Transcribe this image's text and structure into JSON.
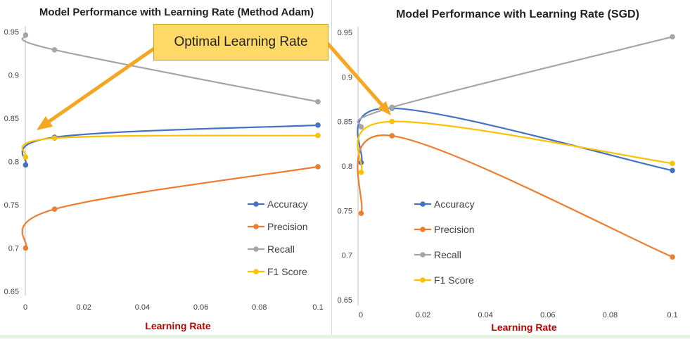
{
  "annotation": {
    "text": "Optimal Learning Rate",
    "color": "#ffd966",
    "arrow_color": "#f5a623"
  },
  "colors": {
    "Accuracy": "#4472c4",
    "Precision": "#ed7d31",
    "Recall": "#a5a5a5",
    "F1 Score": "#ffc000",
    "xlabel": "#c00000"
  },
  "chart_data": [
    {
      "type": "line",
      "title": "Model Performance with Learning Rate (Method Adam)",
      "xlabel": "Learning Rate",
      "ylabel": "",
      "x": [
        0.0001,
        0.01,
        0.1
      ],
      "xlim": [
        0,
        0.1
      ],
      "ylim": [
        0.65,
        0.95
      ],
      "xticks": [
        "0",
        "0.02",
        "0.04",
        "0.06",
        "0.08",
        "0.1"
      ],
      "yticks": [
        "0.65",
        "0.7",
        "0.75",
        "0.8",
        "0.85",
        "0.9",
        "0.95"
      ],
      "grid": false,
      "legend": "bottom-right",
      "series": [
        {
          "name": "Accuracy",
          "values": [
            0.796,
            0.828,
            0.842
          ]
        },
        {
          "name": "Precision",
          "values": [
            0.7,
            0.745,
            0.794
          ]
        },
        {
          "name": "Recall",
          "values": [
            0.946,
            0.929,
            0.869
          ]
        },
        {
          "name": "F1 Score",
          "values": [
            0.805,
            0.827,
            0.83
          ]
        }
      ]
    },
    {
      "type": "line",
      "title": "Model Performance with Learning Rate (SGD)",
      "xlabel": "Learning Rate",
      "ylabel": "",
      "x": [
        0.0001,
        0.01,
        0.1
      ],
      "xlim": [
        0,
        0.1
      ],
      "ylim": [
        0.65,
        0.95
      ],
      "xticks": [
        "0",
        "0.02",
        "0.04",
        "0.06",
        "0.08",
        "0.1"
      ],
      "yticks": [
        "0.65",
        "0.7",
        "0.75",
        "0.8",
        "0.85",
        "0.9",
        "0.95"
      ],
      "grid": false,
      "legend": "center-left",
      "series": [
        {
          "name": "Accuracy",
          "values": [
            0.804,
            0.865,
            0.795
          ]
        },
        {
          "name": "Precision",
          "values": [
            0.747,
            0.834,
            0.698
          ]
        },
        {
          "name": "Recall",
          "values": [
            0.844,
            0.866,
            0.945
          ]
        },
        {
          "name": "F1 Score",
          "values": [
            0.793,
            0.85,
            0.803
          ]
        }
      ]
    }
  ]
}
